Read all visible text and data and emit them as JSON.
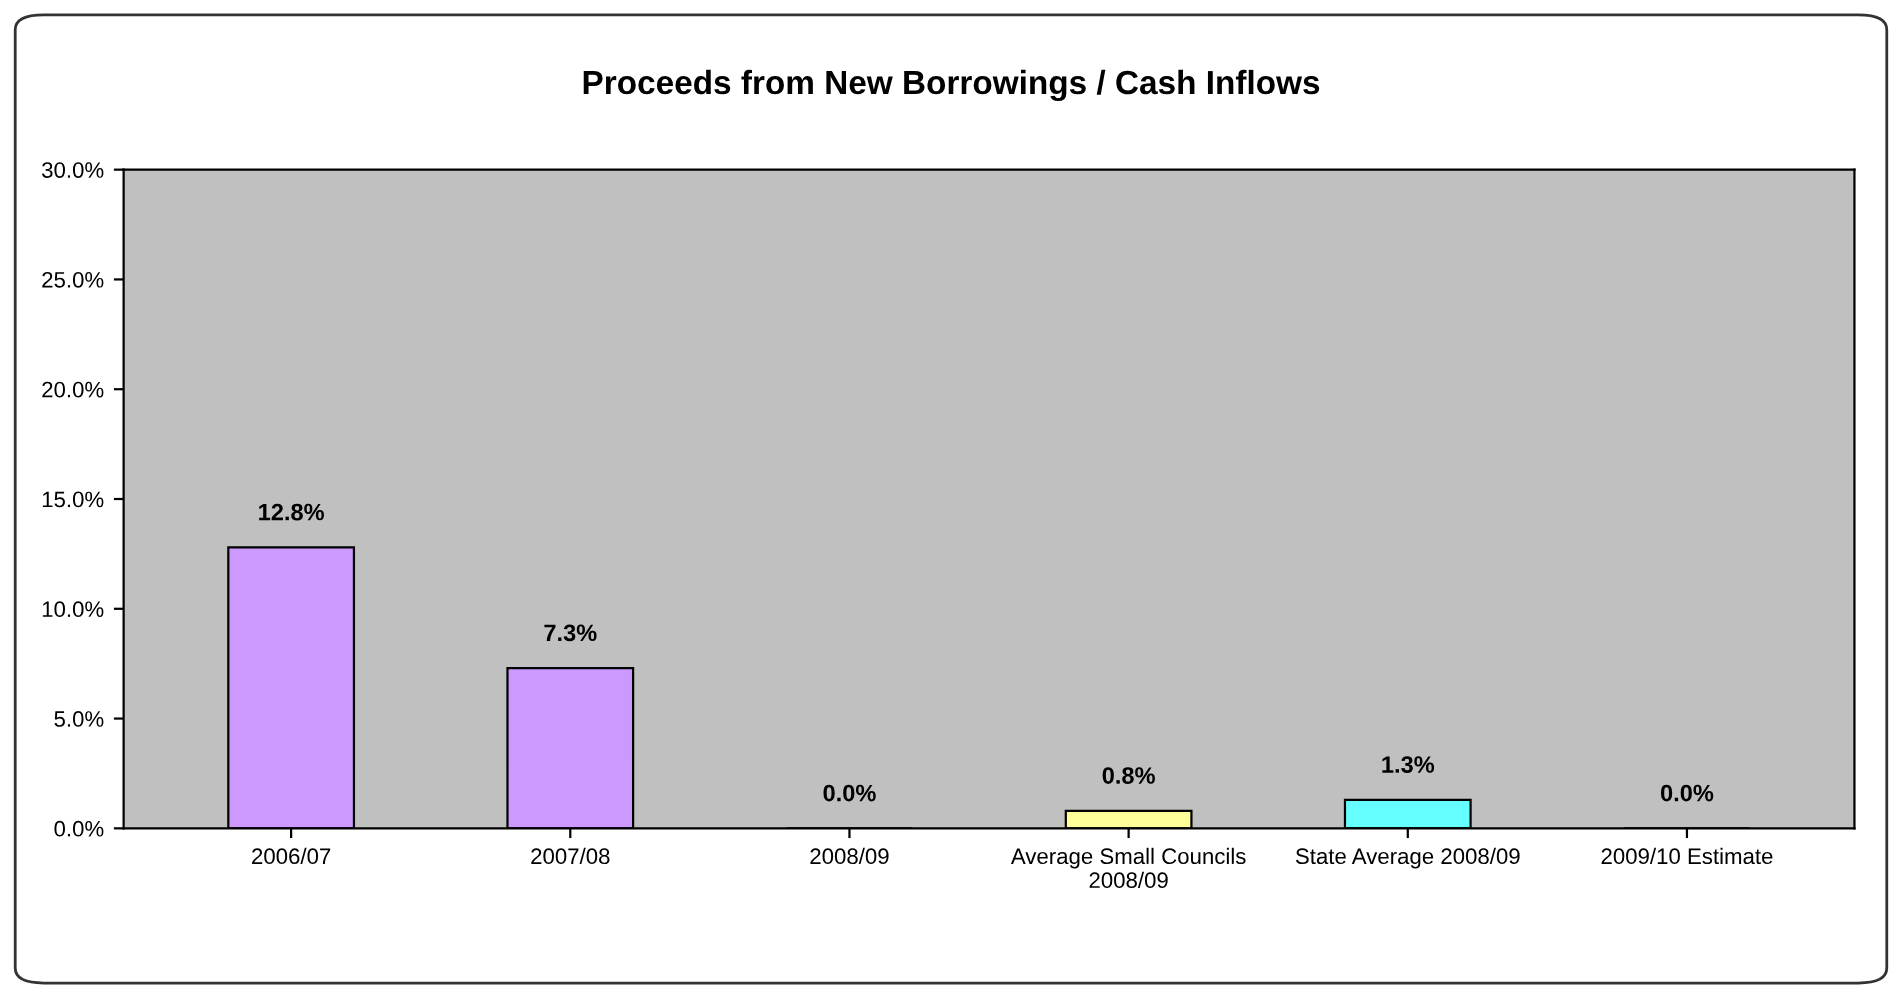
{
  "chart_data": {
    "type": "bar",
    "title": "Proceeds from New Borrowings / Cash Inflows",
    "categories": [
      "2006/07",
      "2007/08",
      "2008/09",
      "Average Small Councils\n2008/09",
      "State Average 2008/09",
      "2009/10 Estimate"
    ],
    "values": [
      12.8,
      7.3,
      0.0,
      0.8,
      1.3,
      0.0
    ],
    "colors": [
      "#cc99ff",
      "#cc99ff",
      "#cc99ff",
      "#ffff99",
      "#66ffff",
      "#cc99ff"
    ],
    "value_labels": [
      "12.8%",
      "7.3%",
      "0.0%",
      "0.8%",
      "1.3%",
      "0.0%"
    ],
    "ylim": [
      0,
      30
    ],
    "yticks": [
      {
        "value": 0,
        "label": "0.0%"
      },
      {
        "value": 5,
        "label": "5.0%"
      },
      {
        "value": 10,
        "label": "10.0%"
      },
      {
        "value": 15,
        "label": "15.0%"
      },
      {
        "value": 20,
        "label": "20.0%"
      },
      {
        "value": 25,
        "label": "25.0%"
      },
      {
        "value": 30,
        "label": "30.0%"
      }
    ],
    "grid": false,
    "legend": false
  }
}
